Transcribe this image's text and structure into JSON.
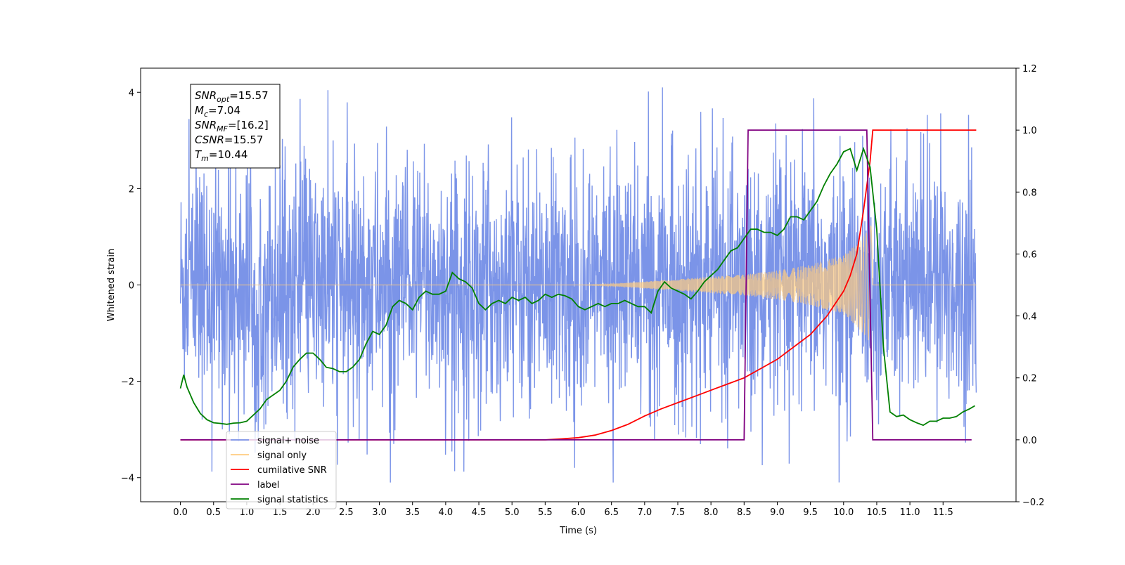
{
  "chart_data": {
    "type": "line",
    "xlabel": "Time (s)",
    "ylabel_left": "Whitened strain",
    "ylabel_right": "",
    "xlim": [
      -0.6,
      12.6
    ],
    "ylim_left": [
      -4.5,
      4.5
    ],
    "ylim_right": [
      -0.2,
      1.2
    ],
    "x_ticks": [
      0.0,
      0.5,
      1.0,
      1.5,
      2.0,
      2.5,
      3.0,
      3.5,
      4.0,
      4.5,
      5.0,
      5.5,
      6.0,
      6.5,
      7.0,
      7.5,
      8.0,
      8.5,
      9.0,
      9.5,
      10.0,
      10.5,
      11.0,
      11.5
    ],
    "x_tick_labels": [
      "0.0",
      "0.5",
      "1.0",
      "1.5",
      "2.0",
      "2.5",
      "3.0",
      "3.5",
      "4.0",
      "4.5",
      "5.0",
      "5.5",
      "6.0",
      "6.5",
      "7.0",
      "7.5",
      "8.0",
      "8.5",
      "9.0",
      "9.5",
      "10.0",
      "10.5",
      "11.0",
      "11.5"
    ],
    "y_ticks_left": [
      -4,
      -2,
      0,
      2,
      4
    ],
    "y_tick_labels_left": [
      "−4",
      "−2",
      "0",
      "2",
      "4"
    ],
    "y_ticks_right": [
      -0.2,
      0.0,
      0.2,
      0.4,
      0.6,
      0.8,
      1.0,
      1.2
    ],
    "y_tick_labels_right": [
      "−0.2",
      "0.0",
      "0.2",
      "0.4",
      "0.6",
      "0.8",
      "1.0",
      "1.2"
    ],
    "grid": false,
    "legend_position": "lower-left",
    "annotation": {
      "lines": [
        {
          "sym": "SNR",
          "sub": "opt",
          "val": "=15.57"
        },
        {
          "sym": "M",
          "sub": "c",
          "val": "=7.04"
        },
        {
          "sym": "SNR",
          "sub": "MF",
          "val": "=[16.2]"
        },
        {
          "sym": "CSNR",
          "sub": "",
          "val": "=15.57"
        },
        {
          "sym": "T",
          "sub": "m",
          "val": "=10.44"
        }
      ]
    },
    "series": [
      {
        "name": "signal+ noise",
        "axis": "left",
        "color": "#7b94e8",
        "kind": "noise",
        "x_range": [
          0.0,
          12.0
        ],
        "noise_band": 1.3,
        "extremes_max": 4.1,
        "extremes_min": -4.1
      },
      {
        "name": "signal only",
        "axis": "left",
        "color": "#ffcc80",
        "kind": "chirp",
        "x_range": [
          0.0,
          12.0
        ],
        "chirp_start": 6.0,
        "chirp_end": 10.44,
        "envelope_points": [
          [
            6.0,
            0.0
          ],
          [
            6.5,
            0.02
          ],
          [
            7.0,
            0.07
          ],
          [
            7.5,
            0.12
          ],
          [
            8.0,
            0.17
          ],
          [
            8.5,
            0.22
          ],
          [
            9.0,
            0.3
          ],
          [
            9.5,
            0.42
          ],
          [
            10.0,
            0.62
          ],
          [
            10.2,
            0.85
          ],
          [
            10.35,
            1.1
          ],
          [
            10.44,
            1.3
          ]
        ]
      },
      {
        "name": "cumilative SNR",
        "axis": "right",
        "color": "#ff0000",
        "points": [
          [
            0.0,
            0.0
          ],
          [
            5.5,
            0.0
          ],
          [
            5.75,
            0.003
          ],
          [
            6.0,
            0.007
          ],
          [
            6.25,
            0.015
          ],
          [
            6.5,
            0.03
          ],
          [
            6.75,
            0.05
          ],
          [
            7.0,
            0.077
          ],
          [
            7.25,
            0.1
          ],
          [
            7.5,
            0.12
          ],
          [
            7.75,
            0.14
          ],
          [
            8.0,
            0.16
          ],
          [
            8.25,
            0.18
          ],
          [
            8.5,
            0.2
          ],
          [
            8.75,
            0.23
          ],
          [
            9.0,
            0.26
          ],
          [
            9.25,
            0.3
          ],
          [
            9.5,
            0.34
          ],
          [
            9.75,
            0.4
          ],
          [
            10.0,
            0.48
          ],
          [
            10.1,
            0.53
          ],
          [
            10.2,
            0.6
          ],
          [
            10.3,
            0.74
          ],
          [
            10.4,
            0.9
          ],
          [
            10.44,
            1.0
          ],
          [
            10.6,
            1.0
          ],
          [
            12.0,
            1.0
          ]
        ]
      },
      {
        "name": "label",
        "axis": "right",
        "color": "#800080",
        "points": [
          [
            0.0,
            0.0
          ],
          [
            8.5,
            0.0
          ],
          [
            8.56,
            1.0
          ],
          [
            10.35,
            1.0
          ],
          [
            10.44,
            0.0
          ],
          [
            11.93,
            0.0
          ]
        ]
      },
      {
        "name": "signal statistics",
        "axis": "right",
        "color": "#008000",
        "points": [
          [
            0.0,
            0.166
          ],
          [
            0.05,
            0.21
          ],
          [
            0.1,
            0.17
          ],
          [
            0.2,
            0.12
          ],
          [
            0.3,
            0.085
          ],
          [
            0.4,
            0.065
          ],
          [
            0.5,
            0.055
          ],
          [
            0.6,
            0.053
          ],
          [
            0.7,
            0.05
          ],
          [
            0.8,
            0.054
          ],
          [
            0.9,
            0.055
          ],
          [
            1.0,
            0.06
          ],
          [
            1.1,
            0.08
          ],
          [
            1.2,
            0.1
          ],
          [
            1.3,
            0.13
          ],
          [
            1.4,
            0.145
          ],
          [
            1.5,
            0.16
          ],
          [
            1.6,
            0.19
          ],
          [
            1.7,
            0.235
          ],
          [
            1.8,
            0.26
          ],
          [
            1.9,
            0.28
          ],
          [
            2.0,
            0.28
          ],
          [
            2.1,
            0.26
          ],
          [
            2.2,
            0.234
          ],
          [
            2.3,
            0.23
          ],
          [
            2.4,
            0.22
          ],
          [
            2.5,
            0.22
          ],
          [
            2.6,
            0.235
          ],
          [
            2.7,
            0.26
          ],
          [
            2.8,
            0.31
          ],
          [
            2.9,
            0.35
          ],
          [
            3.0,
            0.34
          ],
          [
            3.1,
            0.37
          ],
          [
            3.2,
            0.43
          ],
          [
            3.3,
            0.45
          ],
          [
            3.4,
            0.44
          ],
          [
            3.5,
            0.42
          ],
          [
            3.6,
            0.46
          ],
          [
            3.7,
            0.48
          ],
          [
            3.8,
            0.47
          ],
          [
            3.9,
            0.47
          ],
          [
            4.0,
            0.48
          ],
          [
            4.1,
            0.54
          ],
          [
            4.2,
            0.52
          ],
          [
            4.3,
            0.51
          ],
          [
            4.4,
            0.49
          ],
          [
            4.5,
            0.44
          ],
          [
            4.6,
            0.42
          ],
          [
            4.7,
            0.44
          ],
          [
            4.8,
            0.45
          ],
          [
            4.9,
            0.44
          ],
          [
            5.0,
            0.46
          ],
          [
            5.1,
            0.45
          ],
          [
            5.2,
            0.46
          ],
          [
            5.3,
            0.44
          ],
          [
            5.4,
            0.45
          ],
          [
            5.5,
            0.47
          ],
          [
            5.6,
            0.46
          ],
          [
            5.7,
            0.47
          ],
          [
            5.8,
            0.465
          ],
          [
            5.9,
            0.455
          ],
          [
            6.0,
            0.43
          ],
          [
            6.1,
            0.42
          ],
          [
            6.2,
            0.43
          ],
          [
            6.3,
            0.44
          ],
          [
            6.4,
            0.43
          ],
          [
            6.5,
            0.44
          ],
          [
            6.6,
            0.44
          ],
          [
            6.7,
            0.45
          ],
          [
            6.8,
            0.44
          ],
          [
            6.9,
            0.43
          ],
          [
            7.0,
            0.43
          ],
          [
            7.1,
            0.41
          ],
          [
            7.2,
            0.48
          ],
          [
            7.3,
            0.51
          ],
          [
            7.4,
            0.49
          ],
          [
            7.5,
            0.48
          ],
          [
            7.6,
            0.47
          ],
          [
            7.7,
            0.455
          ],
          [
            7.8,
            0.48
          ],
          [
            7.9,
            0.51
          ],
          [
            8.0,
            0.53
          ],
          [
            8.1,
            0.55
          ],
          [
            8.2,
            0.58
          ],
          [
            8.3,
            0.61
          ],
          [
            8.4,
            0.62
          ],
          [
            8.5,
            0.65
          ],
          [
            8.6,
            0.68
          ],
          [
            8.7,
            0.68
          ],
          [
            8.8,
            0.67
          ],
          [
            8.9,
            0.67
          ],
          [
            9.0,
            0.66
          ],
          [
            9.1,
            0.68
          ],
          [
            9.2,
            0.72
          ],
          [
            9.3,
            0.72
          ],
          [
            9.4,
            0.71
          ],
          [
            9.5,
            0.74
          ],
          [
            9.6,
            0.77
          ],
          [
            9.7,
            0.82
          ],
          [
            9.8,
            0.86
          ],
          [
            9.9,
            0.89
          ],
          [
            10.0,
            0.93
          ],
          [
            10.1,
            0.94
          ],
          [
            10.2,
            0.87
          ],
          [
            10.3,
            0.94
          ],
          [
            10.4,
            0.88
          ],
          [
            10.5,
            0.68
          ],
          [
            10.6,
            0.3
          ],
          [
            10.7,
            0.09
          ],
          [
            10.8,
            0.075
          ],
          [
            10.9,
            0.08
          ],
          [
            11.0,
            0.065
          ],
          [
            11.1,
            0.055
          ],
          [
            11.2,
            0.047
          ],
          [
            11.3,
            0.06
          ],
          [
            11.4,
            0.06
          ],
          [
            11.5,
            0.07
          ],
          [
            11.6,
            0.07
          ],
          [
            11.7,
            0.075
          ],
          [
            11.8,
            0.09
          ],
          [
            11.9,
            0.1
          ],
          [
            11.98,
            0.11
          ]
        ]
      }
    ],
    "legend": [
      {
        "label": "signal+ noise",
        "color": "#7b94e8"
      },
      {
        "label": "signal only",
        "color": "#ffcc80"
      },
      {
        "label": "cumilative SNR",
        "color": "#ff0000"
      },
      {
        "label": "label",
        "color": "#800080"
      },
      {
        "label": "signal statistics",
        "color": "#008000"
      }
    ]
  }
}
